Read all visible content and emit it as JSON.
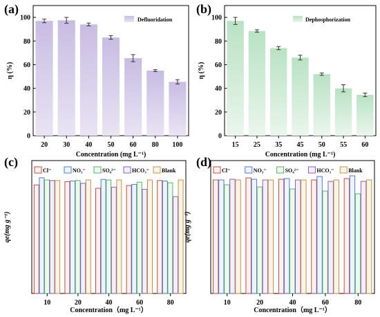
{
  "colors": {
    "bar_a": "#c8bce3",
    "bar_a_top": "#e9e4f3",
    "bar_b": "#b9e2c3",
    "bar_b_top": "#eaf6ed",
    "cl": "#c0392b",
    "no3": "#3b6fd6",
    "so4": "#49a95a",
    "hco3": "#7a55b0",
    "blank": "#b88a3c"
  },
  "chart_data": [
    {
      "panel": "(a)",
      "type": "bar",
      "categories": [
        "20",
        "30",
        "40",
        "50",
        "60",
        "80",
        "100"
      ],
      "values": [
        97,
        97.5,
        94,
        83,
        65.5,
        55,
        45.5
      ],
      "errors": [
        1.5,
        2.5,
        1.2,
        1.5,
        3,
        0.8,
        1.8
      ],
      "legend": "Defluoridation",
      "xlabel": "Concentration (mg L⁻¹)",
      "ylabel": "η (%)",
      "ylim": [
        0,
        110
      ],
      "yticks": [
        0,
        20,
        40,
        60,
        80,
        100
      ]
    },
    {
      "panel": "(b)",
      "type": "bar",
      "categories": [
        "15",
        "25",
        "35",
        "45",
        "50",
        "55",
        "60"
      ],
      "values": [
        97,
        88.5,
        74,
        66,
        52,
        40,
        34.5
      ],
      "errors": [
        3,
        1,
        1.3,
        2,
        1,
        3,
        1.5
      ],
      "legend": "Dephosphorization",
      "xlabel": "Concentration (mg L⁻¹)",
      "ylabel": "η (%)",
      "ylim": [
        0,
        110
      ],
      "yticks": [
        0,
        20,
        40,
        60,
        80,
        100
      ]
    },
    {
      "panel": "(c)",
      "type": "bar",
      "categories": [
        "10",
        "20",
        "40",
        "60",
        "80"
      ],
      "series": [
        {
          "name": "Cl⁻",
          "values": [
            196,
            202,
            190,
            195,
            204
          ]
        },
        {
          "name": "NO₃⁻",
          "values": [
            209,
            203,
            206,
            197,
            203
          ]
        },
        {
          "name": "SO₄²⁻",
          "values": [
            205,
            204,
            205,
            201,
            200
          ]
        },
        {
          "name": "HCO₃⁻",
          "values": [
            204,
            199,
            192,
            188,
            175
          ]
        },
        {
          "name": "Blank",
          "values": [
            204,
            205,
            205,
            205,
            205
          ]
        }
      ],
      "xlabel": "Concentration（mg L⁻¹）",
      "ylabel": "qe(mg g⁻¹)",
      "ylim": [
        0,
        240
      ]
    },
    {
      "panel": "(d)",
      "type": "bar",
      "categories": [
        "10",
        "20",
        "40",
        "60",
        "80"
      ],
      "series": [
        {
          "name": "Cl⁻",
          "values": [
            82,
            83.5,
            82.5,
            82,
            83
          ]
        },
        {
          "name": "NO₃⁻",
          "values": [
            82,
            82.5,
            83,
            84.5,
            85
          ]
        },
        {
          "name": "SO₄²⁻",
          "values": [
            78.5,
            77,
            75.5,
            74,
            72
          ]
        },
        {
          "name": "HCO₃⁻",
          "values": [
            82.5,
            82,
            82,
            81,
            81
          ]
        },
        {
          "name": "Blank",
          "values": [
            82,
            82,
            82,
            82,
            82
          ]
        }
      ],
      "xlabel": "Concentration（mg L⁻¹）",
      "ylabel": "qe(mg g⁻¹)",
      "ylim": [
        0,
        96
      ]
    }
  ]
}
